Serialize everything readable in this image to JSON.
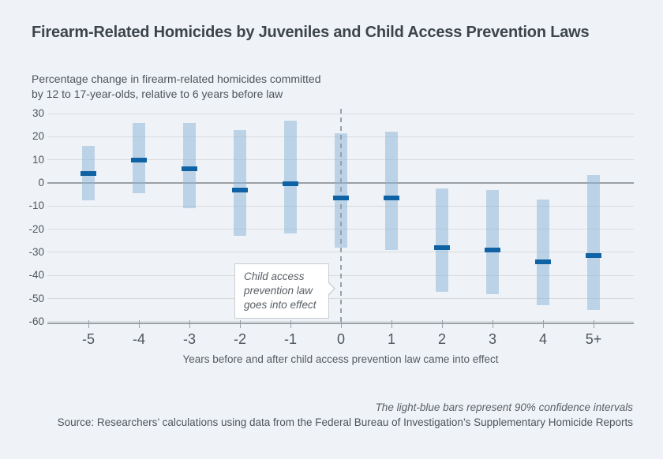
{
  "header": {
    "title": "Firearm-Related Homicides by Juveniles and Child Access Prevention Laws",
    "subtitle_line1": "Percentage change in firearm-related homicides committed",
    "subtitle_line2": "by 12 to 17-year-olds, relative to 6 years before law"
  },
  "annotation": {
    "lines": [
      "Child access",
      "prevention law",
      "goes into effect"
    ]
  },
  "footer": {
    "note": "The light-blue bars represent 90% confidence intervals",
    "source": "Source: Researchers’ calculations using data from the Federal Bureau of Investigation’s Supplementary Homicide Reports"
  },
  "chart_data": {
    "type": "bar",
    "subtype": "point-estimates-with-confidence-intervals",
    "title": "Firearm-Related Homicides by Juveniles and Child Access Prevention Laws",
    "xlabel": "Years before and after child access prevention law came into effect",
    "ylabel": "Percentage change in firearm-related homicides committed by 12 to 17-year-olds, relative to 6 years before law",
    "categories": [
      "-5",
      "-4",
      "-3",
      "-2",
      "-1",
      "0",
      "1",
      "2",
      "3",
      "4",
      "5+"
    ],
    "series": [
      {
        "name": "Point estimate",
        "values": [
          4,
          10,
          6,
          -3,
          -0.5,
          -6.5,
          -6.5,
          -28,
          -29,
          -34,
          -31.5
        ]
      },
      {
        "name": "90% CI lower bound",
        "values": [
          -7.5,
          -4.5,
          -11,
          -23,
          -22,
          -28,
          -29,
          -47,
          -48,
          -53,
          -55
        ]
      },
      {
        "name": "90% CI upper bound",
        "values": [
          16,
          26,
          26,
          23,
          27,
          21.5,
          22,
          -2.5,
          -3,
          -7,
          3.5
        ]
      }
    ],
    "ylim": [
      -60,
      30
    ],
    "yticks": [
      30,
      20,
      10,
      0,
      -10,
      -20,
      -30,
      -40,
      -50,
      -60
    ],
    "grid": true,
    "event_category": "0",
    "legend_note": "The light-blue bars represent 90% confidence intervals",
    "colors": {
      "ci_bar": "rgba(142,183,216,0.52)",
      "point_estimate": "#0f63a4",
      "gridline": "#d8dbde",
      "zero_line": "#99a0a6",
      "event_line": "#98a1a8",
      "background": "#eff3f7"
    }
  }
}
